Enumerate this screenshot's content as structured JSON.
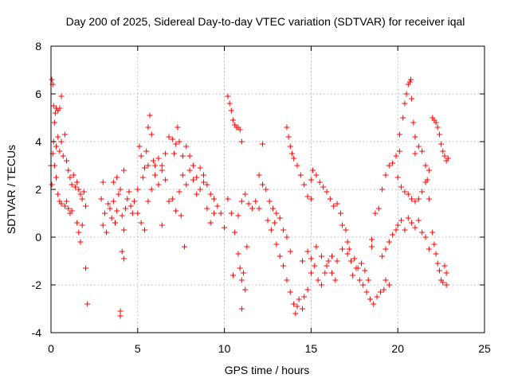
{
  "chart_data": {
    "type": "scatter",
    "title": "Day 200 of 2025, Sidereal Day-to-day VTEC variation (SDTVAR) for receiver iqal",
    "xlabel": "GPS time / hours",
    "ylabel": "SDTVAR / TECUs",
    "xlim": [
      0,
      25
    ],
    "ylim": [
      -4,
      8
    ],
    "xticks": [
      0,
      5,
      10,
      15,
      20,
      25
    ],
    "yticks": [
      -4,
      -2,
      0,
      2,
      4,
      6,
      8
    ],
    "grid": true,
    "marker": "plus",
    "color": "#ff0000",
    "series": [
      {
        "name": "SDTVAR",
        "points": [
          [
            0.0,
            3.0
          ],
          [
            0.05,
            6.6
          ],
          [
            0.1,
            6.4
          ],
          [
            0.15,
            5.5
          ],
          [
            0.2,
            4.8
          ],
          [
            0.25,
            5.2
          ],
          [
            0.3,
            5.4
          ],
          [
            0.4,
            5.3
          ],
          [
            0.5,
            5.4
          ],
          [
            0.6,
            5.9
          ],
          [
            0.05,
            2.2
          ],
          [
            0.1,
            3.5
          ],
          [
            0.15,
            4.0
          ],
          [
            0.2,
            3.0
          ],
          [
            0.3,
            3.8
          ],
          [
            0.4,
            4.2
          ],
          [
            0.5,
            3.6
          ],
          [
            0.6,
            4.0
          ],
          [
            0.7,
            3.4
          ],
          [
            0.8,
            4.3
          ],
          [
            0.3,
            2.5
          ],
          [
            0.4,
            1.8
          ],
          [
            0.5,
            1.5
          ],
          [
            0.6,
            1.4
          ],
          [
            0.8,
            1.3
          ],
          [
            0.9,
            1.5
          ],
          [
            1.0,
            1.2
          ],
          [
            1.1,
            1.0
          ],
          [
            1.2,
            1.1
          ],
          [
            0.9,
            3.2
          ],
          [
            1.0,
            2.8
          ],
          [
            1.1,
            2.5
          ],
          [
            1.2,
            2.2
          ],
          [
            1.3,
            2.6
          ],
          [
            1.4,
            2.1
          ],
          [
            1.5,
            2.3
          ],
          [
            1.6,
            2.0
          ],
          [
            1.7,
            1.8
          ],
          [
            1.8,
            1.6
          ],
          [
            1.9,
            1.9
          ],
          [
            2.0,
            1.3
          ],
          [
            1.5,
            0.6
          ],
          [
            1.6,
            0.2
          ],
          [
            1.7,
            -0.2
          ],
          [
            1.8,
            0.5
          ],
          [
            2.0,
            -1.3
          ],
          [
            2.1,
            -2.8
          ],
          [
            2.9,
            1.6
          ],
          [
            3.0,
            2.3
          ],
          [
            3.0,
            0.5
          ],
          [
            3.1,
            1.0
          ],
          [
            3.2,
            0.2
          ],
          [
            3.3,
            1.4
          ],
          [
            3.4,
            1.2
          ],
          [
            3.5,
            0.8
          ],
          [
            3.6,
            1.5
          ],
          [
            3.7,
            0.6
          ],
          [
            3.8,
            1.1
          ],
          [
            3.9,
            1.8
          ],
          [
            4.0,
            2.0
          ],
          [
            4.1,
            0.9
          ],
          [
            4.2,
            0.3
          ],
          [
            4.3,
            1.2
          ],
          [
            4.4,
            1.6
          ],
          [
            4.5,
            1.9
          ],
          [
            4.6,
            1.3
          ],
          [
            4.7,
            1.0
          ],
          [
            4.8,
            1.5
          ],
          [
            4.0,
            -3.1
          ],
          [
            4.0,
            -3.3
          ],
          [
            4.1,
            -0.6
          ],
          [
            4.2,
            -0.9
          ],
          [
            3.6,
            2.3
          ],
          [
            3.8,
            2.5
          ],
          [
            4.2,
            2.8
          ],
          [
            5.0,
            2.0
          ],
          [
            5.1,
            3.8
          ],
          [
            5.2,
            3.4
          ],
          [
            5.3,
            2.5
          ],
          [
            5.4,
            2.9
          ],
          [
            5.5,
            3.6
          ],
          [
            5.6,
            4.6
          ],
          [
            5.7,
            5.1
          ],
          [
            5.8,
            4.3
          ],
          [
            5.9,
            3.2
          ],
          [
            5.0,
            1.0
          ],
          [
            5.2,
            0.6
          ],
          [
            5.4,
            0.3
          ],
          [
            5.6,
            1.5
          ],
          [
            5.8,
            2.0
          ],
          [
            6.0,
            2.6
          ],
          [
            6.2,
            2.2
          ],
          [
            6.4,
            3.0
          ],
          [
            6.6,
            2.4
          ],
          [
            6.8,
            1.5
          ],
          [
            6.0,
            3.0
          ],
          [
            6.2,
            3.3
          ],
          [
            6.4,
            2.8
          ],
          [
            6.6,
            3.5
          ],
          [
            6.8,
            4.2
          ],
          [
            7.0,
            4.1
          ],
          [
            7.1,
            3.5
          ],
          [
            7.2,
            3.9
          ],
          [
            7.3,
            4.6
          ],
          [
            7.4,
            4.0
          ],
          [
            7.0,
            1.6
          ],
          [
            7.2,
            1.1
          ],
          [
            7.4,
            1.9
          ],
          [
            7.6,
            2.6
          ],
          [
            7.8,
            2.2
          ],
          [
            8.0,
            2.8
          ],
          [
            8.2,
            3.0
          ],
          [
            8.4,
            2.5
          ],
          [
            8.6,
            2.9
          ],
          [
            8.8,
            2.3
          ],
          [
            7.6,
            3.4
          ],
          [
            7.8,
            3.8
          ],
          [
            8.0,
            3.4
          ],
          [
            8.2,
            2.4
          ],
          [
            8.4,
            1.8
          ],
          [
            8.6,
            2.0
          ],
          [
            8.8,
            2.6
          ],
          [
            9.0,
            2.2
          ],
          [
            9.2,
            1.8
          ],
          [
            9.4,
            1.6
          ],
          [
            7.7,
            -0.4
          ],
          [
            7.5,
            0.9
          ],
          [
            6.4,
            0.5
          ],
          [
            5.6,
            3.0
          ],
          [
            9.0,
            1.2
          ],
          [
            9.2,
            0.6
          ],
          [
            9.4,
            1.0
          ],
          [
            9.6,
            1.3
          ],
          [
            9.8,
            1.0
          ],
          [
            10.0,
            0.4
          ],
          [
            10.2,
            1.6
          ],
          [
            10.4,
            1.0
          ],
          [
            10.6,
            0.2
          ],
          [
            10.8,
            0.9
          ],
          [
            10.2,
            5.9
          ],
          [
            10.3,
            5.6
          ],
          [
            10.4,
            5.3
          ],
          [
            10.5,
            4.9
          ],
          [
            10.6,
            4.7
          ],
          [
            10.7,
            4.6
          ],
          [
            10.8,
            4.6
          ],
          [
            10.9,
            4.5
          ],
          [
            11.0,
            4.0
          ],
          [
            10.8,
            -0.7
          ],
          [
            10.9,
            -1.3
          ],
          [
            11.0,
            -1.8
          ],
          [
            11.1,
            -1.5
          ],
          [
            11.2,
            -2.2
          ],
          [
            11.3,
            -0.4
          ],
          [
            11.0,
            -3.0
          ],
          [
            10.5,
            -1.6
          ],
          [
            11.0,
            1.5
          ],
          [
            11.2,
            1.8
          ],
          [
            11.4,
            1.4
          ],
          [
            11.6,
            1.2
          ],
          [
            11.8,
            1.5
          ],
          [
            12.0,
            1.2
          ],
          [
            12.2,
            2.2
          ],
          [
            12.4,
            2.0
          ],
          [
            12.6,
            1.5
          ],
          [
            12.8,
            1.2
          ],
          [
            12.2,
            3.9
          ],
          [
            12.0,
            2.6
          ],
          [
            12.5,
            0.7
          ],
          [
            12.7,
            0.3
          ],
          [
            12.9,
            0.6
          ],
          [
            13.0,
            1.0
          ],
          [
            13.2,
            0.8
          ],
          [
            13.4,
            0.3
          ],
          [
            13.6,
            0.0
          ],
          [
            13.8,
            -0.6
          ],
          [
            13.0,
            -0.3
          ],
          [
            13.2,
            -0.8
          ],
          [
            13.4,
            -1.2
          ],
          [
            13.6,
            -1.8
          ],
          [
            13.8,
            -2.3
          ],
          [
            14.0,
            -2.8
          ],
          [
            14.1,
            -3.2
          ],
          [
            14.2,
            -2.9
          ],
          [
            14.3,
            -2.6
          ],
          [
            14.5,
            -3.0
          ],
          [
            13.6,
            4.6
          ],
          [
            13.7,
            4.2
          ],
          [
            13.8,
            3.8
          ],
          [
            13.9,
            3.5
          ],
          [
            14.0,
            3.3
          ],
          [
            14.2,
            3.0
          ],
          [
            14.4,
            2.6
          ],
          [
            14.6,
            2.2
          ],
          [
            14.8,
            1.7
          ],
          [
            15.0,
            1.6
          ],
          [
            14.6,
            -2.5
          ],
          [
            14.8,
            -2.2
          ],
          [
            15.0,
            -1.5
          ],
          [
            15.2,
            -1.2
          ],
          [
            15.4,
            -1.8
          ],
          [
            15.6,
            -2.0
          ],
          [
            15.8,
            -1.5
          ],
          [
            16.0,
            -1.0
          ],
          [
            16.2,
            -1.5
          ],
          [
            16.4,
            -1.8
          ],
          [
            15.0,
            2.4
          ],
          [
            15.1,
            2.8
          ],
          [
            15.3,
            2.6
          ],
          [
            15.5,
            2.3
          ],
          [
            15.7,
            2.1
          ],
          [
            15.9,
            1.9
          ],
          [
            16.1,
            1.6
          ],
          [
            16.3,
            1.3
          ],
          [
            16.5,
            1.4
          ],
          [
            16.7,
            1.0
          ],
          [
            14.5,
            -1.0
          ],
          [
            14.8,
            -0.6
          ],
          [
            15.0,
            -0.9
          ],
          [
            15.3,
            -0.4
          ],
          [
            15.6,
            -0.8
          ],
          [
            15.9,
            -1.2
          ],
          [
            16.2,
            -0.8
          ],
          [
            16.5,
            -1.0
          ],
          [
            16.8,
            -0.5
          ],
          [
            17.1,
            -0.7
          ],
          [
            16.8,
            0.5
          ],
          [
            17.0,
            0.3
          ],
          [
            17.1,
            -0.2
          ],
          [
            17.2,
            -0.5
          ],
          [
            17.3,
            -1.0
          ],
          [
            17.5,
            -0.9
          ],
          [
            17.7,
            -1.3
          ],
          [
            17.9,
            -1.1
          ],
          [
            18.1,
            -1.4
          ],
          [
            18.3,
            -1.8
          ],
          [
            17.4,
            -1.6
          ],
          [
            17.6,
            -1.3
          ],
          [
            17.8,
            -1.8
          ],
          [
            18.0,
            -2.0
          ],
          [
            18.2,
            -2.3
          ],
          [
            18.4,
            -2.6
          ],
          [
            18.6,
            -2.8
          ],
          [
            18.8,
            -2.5
          ],
          [
            19.0,
            -2.3
          ],
          [
            19.2,
            -2.2
          ],
          [
            19.3,
            -1.8
          ],
          [
            19.5,
            -2.0
          ],
          [
            19.1,
            -0.8
          ],
          [
            19.3,
            -0.5
          ],
          [
            19.5,
            -0.2
          ],
          [
            19.7,
            0.1
          ],
          [
            19.9,
            0.3
          ],
          [
            18.5,
            -0.4
          ],
          [
            18.5,
            -0.1
          ],
          [
            18.7,
            1.0
          ],
          [
            18.9,
            1.2
          ],
          [
            19.1,
            2.0
          ],
          [
            19.3,
            2.6
          ],
          [
            19.5,
            3.0
          ],
          [
            19.7,
            3.1
          ],
          [
            19.9,
            3.4
          ],
          [
            20.1,
            3.6
          ],
          [
            20.1,
            4.3
          ],
          [
            20.3,
            5.0
          ],
          [
            20.4,
            5.6
          ],
          [
            20.5,
            6.0
          ],
          [
            20.6,
            6.4
          ],
          [
            20.7,
            6.5
          ],
          [
            20.75,
            6.6
          ],
          [
            20.8,
            5.8
          ],
          [
            20.9,
            4.8
          ],
          [
            21.0,
            4.2
          ],
          [
            20.0,
            2.5
          ],
          [
            20.2,
            2.1
          ],
          [
            20.4,
            1.9
          ],
          [
            20.6,
            1.8
          ],
          [
            20.8,
            1.6
          ],
          [
            21.0,
            1.5
          ],
          [
            21.2,
            1.6
          ],
          [
            21.4,
            1.9
          ],
          [
            21.6,
            2.3
          ],
          [
            21.8,
            1.6
          ],
          [
            20.0,
            0.5
          ],
          [
            20.2,
            0.7
          ],
          [
            20.4,
            0.3
          ],
          [
            20.6,
            0.8
          ],
          [
            20.8,
            0.6
          ],
          [
            21.0,
            0.4
          ],
          [
            21.2,
            0.7
          ],
          [
            21.4,
            0.2
          ],
          [
            21.6,
            0.0
          ],
          [
            21.8,
            -0.5
          ],
          [
            21.0,
            3.5
          ],
          [
            21.2,
            3.8
          ],
          [
            21.4,
            3.6
          ],
          [
            21.6,
            3.0
          ],
          [
            21.7,
            2.4
          ],
          [
            21.8,
            2.8
          ],
          [
            22.0,
            0.2
          ],
          [
            22.1,
            -0.3
          ],
          [
            22.2,
            -0.7
          ],
          [
            22.3,
            -1.1
          ],
          [
            22.4,
            -1.4
          ],
          [
            22.5,
            -1.8
          ],
          [
            22.6,
            -1.9
          ],
          [
            22.7,
            -1.2
          ],
          [
            22.8,
            -1.5
          ],
          [
            22.8,
            -2.0
          ],
          [
            22.0,
            5.0
          ],
          [
            22.1,
            4.9
          ],
          [
            22.2,
            4.8
          ],
          [
            22.3,
            4.6
          ],
          [
            22.4,
            4.3
          ],
          [
            22.5,
            3.9
          ],
          [
            22.6,
            3.6
          ],
          [
            22.7,
            3.4
          ],
          [
            22.8,
            3.2
          ],
          [
            22.9,
            3.3
          ]
        ]
      }
    ]
  }
}
